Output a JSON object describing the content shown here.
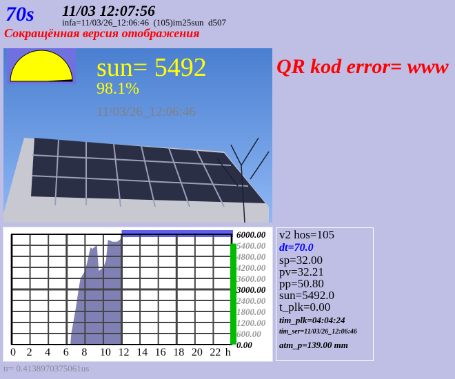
{
  "header": {
    "interval": "70s",
    "datetime": "11/03 12:07:56",
    "info_line": "infa=11/03/26_12:06:46  (105)im25sun  d507",
    "short_version": "Сокращённая версия отображения"
  },
  "qr_error": "QR kod error=  www",
  "photo": {
    "sun_label": "sun= 5492",
    "percent": "98.1%",
    "timestamp": "11/03/26_12:06:46",
    "gauge_fraction": 0.981
  },
  "chart_data": {
    "type": "area",
    "xlabel": "h",
    "x_ticks": [
      "0",
      "2",
      "4",
      "6",
      "8",
      "10",
      "12",
      "14",
      "16",
      "18",
      "20",
      "22"
    ],
    "y_ticks": [
      "0.00",
      "600.00",
      "1200.00",
      "1800.00",
      "2400.00",
      "3000.00",
      "3600.00",
      "4200.00",
      "4800.00",
      "5400.00",
      "6000.00"
    ],
    "xlim": [
      0,
      24
    ],
    "ylim": [
      0,
      6000
    ],
    "grid": true,
    "x": [
      6.4,
      6.5,
      7.0,
      7.3,
      7.5,
      8.0,
      8.3,
      8.6,
      8.8,
      9.0,
      9.3,
      9.5,
      10.0,
      10.3,
      10.5,
      11.0,
      11.5,
      11.9
    ],
    "y": [
      0,
      600,
      2000,
      3000,
      3600,
      4000,
      4600,
      5300,
      5200,
      5300,
      5400,
      4000,
      4200,
      4600,
      5700,
      5600,
      5600,
      5750
    ],
    "current_value": 5492,
    "colors": {
      "area": "#8080b4",
      "current_bar": "#00bb00",
      "top_bar": "#6060ee"
    }
  },
  "info": {
    "lines": [
      "v2 hos=105",
      "dt=70.0",
      "sp=32.00",
      "pv=32.21",
      "pp=50.80",
      "sun=5492.0",
      "t_plk=0.00",
      "tim_plk=04:04:24",
      "tim_ser=11/03/26_12:06:46",
      "atm_p=139.00 mm"
    ]
  },
  "footer": {
    "tr": "tr= 0.4138970375061us"
  }
}
